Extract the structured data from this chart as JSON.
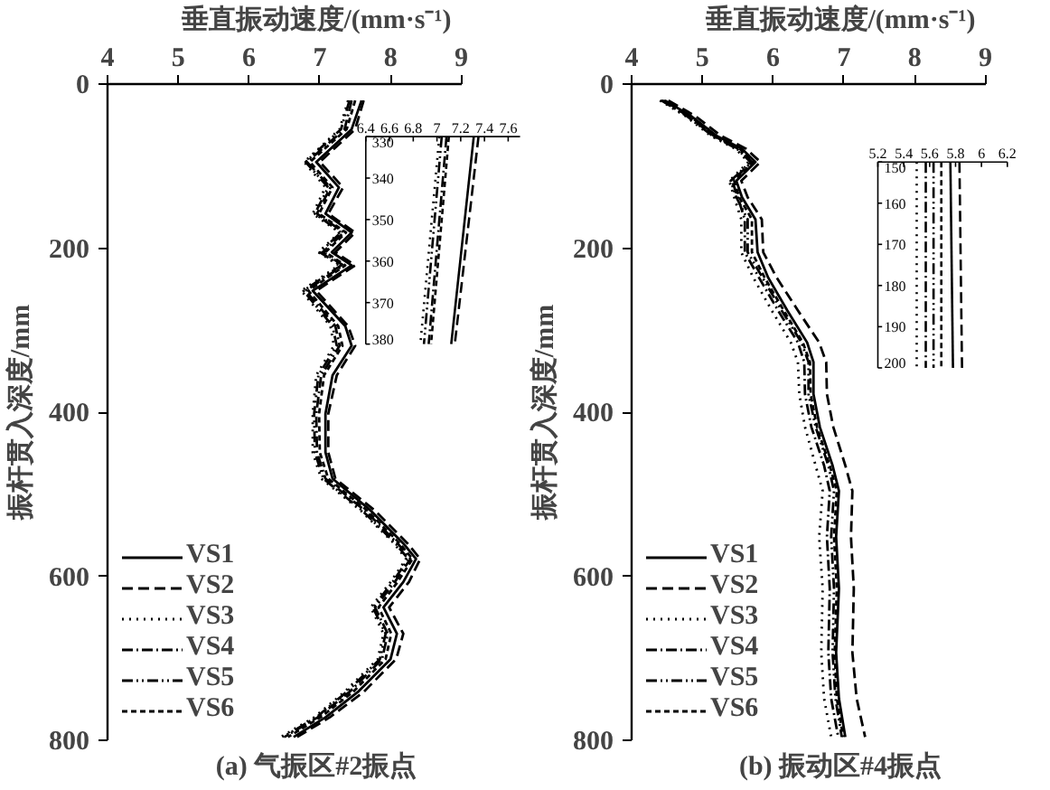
{
  "chart_data": [
    {
      "type": "line",
      "title": "(a) 气振区#2振点",
      "xlabel": "垂直振动速度/(mm·s⁻¹)",
      "ylabel": "振杆贯入深度/mm",
      "xlim": [
        4,
        9
      ],
      "xticks": [
        4,
        5,
        6,
        7,
        8,
        9
      ],
      "ylim": [
        800,
        0
      ],
      "yticks": [
        0,
        200,
        400,
        600,
        800
      ],
      "grid": false,
      "legend": "bottom left",
      "marker": "none",
      "series": [
        {
          "name": "VS1",
          "color": "#000000",
          "line_style": "solid",
          "x": [
            7.59,
            7.45,
            6.95,
            7.27,
            7.08,
            7.45,
            7.17,
            7.45,
            6.9,
            7.36,
            7.45,
            7.18,
            7.08,
            7.08,
            7.18,
            7.72,
            8.18,
            8.36,
            8.18,
            7.9,
            8.09,
            8.0,
            7.54,
            7.08,
            6.63
          ],
          "values": [
            20,
            55,
            95,
            126,
            158,
            181,
            205,
            221,
            252,
            295,
            319,
            355,
            402,
            449,
            481,
            520,
            560,
            579,
            607,
            638,
            670,
            701,
            741,
            772,
            796
          ]
        },
        {
          "name": "VS2",
          "color": "#000000",
          "line_style": "dashed",
          "x": [
            7.62,
            7.5,
            7.0,
            7.33,
            7.12,
            7.5,
            7.22,
            7.5,
            6.95,
            7.4,
            7.5,
            7.24,
            7.12,
            7.12,
            7.22,
            7.78,
            8.24,
            8.42,
            8.26,
            7.98,
            8.18,
            8.08,
            7.62,
            7.14,
            6.68
          ],
          "values": [
            20,
            55,
            95,
            126,
            158,
            181,
            205,
            221,
            252,
            295,
            319,
            355,
            402,
            449,
            481,
            520,
            560,
            579,
            607,
            638,
            670,
            701,
            741,
            772,
            796
          ]
        },
        {
          "name": "VS3",
          "color": "#000000",
          "line_style": "dotted",
          "x": [
            7.4,
            7.28,
            6.78,
            7.08,
            6.9,
            7.28,
            6.98,
            7.27,
            6.74,
            7.15,
            7.2,
            6.95,
            6.9,
            6.9,
            7.02,
            7.58,
            8.05,
            8.22,
            8.0,
            7.72,
            7.9,
            7.82,
            7.35,
            6.92,
            6.45
          ],
          "values": [
            20,
            55,
            95,
            126,
            158,
            181,
            205,
            221,
            252,
            295,
            319,
            355,
            402,
            449,
            481,
            520,
            560,
            579,
            607,
            638,
            670,
            701,
            741,
            772,
            796
          ]
        },
        {
          "name": "VS4",
          "color": "#000000",
          "line_style": "dashdot",
          "x": [
            7.45,
            7.35,
            6.82,
            7.15,
            6.96,
            7.34,
            7.04,
            7.33,
            6.8,
            7.22,
            7.28,
            7.02,
            6.95,
            6.96,
            7.08,
            7.64,
            8.1,
            8.28,
            8.06,
            7.78,
            7.96,
            7.88,
            7.42,
            6.97,
            6.5
          ],
          "values": [
            20,
            55,
            95,
            126,
            158,
            181,
            205,
            221,
            252,
            295,
            319,
            355,
            402,
            449,
            481,
            520,
            560,
            579,
            607,
            638,
            670,
            701,
            741,
            772,
            796
          ]
        },
        {
          "name": "VS5",
          "color": "#000000",
          "line_style": "dashdotdot",
          "x": [
            7.42,
            7.3,
            6.8,
            7.12,
            6.93,
            7.3,
            7.0,
            7.3,
            6.77,
            7.18,
            7.24,
            6.98,
            6.92,
            6.93,
            7.05,
            7.6,
            8.07,
            8.25,
            8.03,
            7.75,
            7.93,
            7.85,
            7.38,
            6.95,
            6.48
          ],
          "values": [
            20,
            55,
            95,
            126,
            158,
            181,
            205,
            221,
            252,
            295,
            319,
            355,
            402,
            449,
            481,
            520,
            560,
            579,
            607,
            638,
            670,
            701,
            741,
            772,
            796
          ]
        },
        {
          "name": "VS6",
          "color": "#000000",
          "line_style": "shortdash",
          "x": [
            7.5,
            7.38,
            6.86,
            7.18,
            6.99,
            7.37,
            7.08,
            7.36,
            6.84,
            7.26,
            7.32,
            7.06,
            6.99,
            7.0,
            7.12,
            7.67,
            8.13,
            8.31,
            8.1,
            7.83,
            8.01,
            7.93,
            7.47,
            7.01,
            6.55
          ],
          "values": [
            20,
            55,
            95,
            126,
            158,
            181,
            205,
            221,
            252,
            295,
            319,
            355,
            402,
            449,
            481,
            520,
            560,
            579,
            607,
            638,
            670,
            701,
            741,
            772,
            796
          ]
        }
      ]
    },
    {
      "type": "line",
      "xlim": [
        6.4,
        7.7
      ],
      "xticks": [
        6.4,
        6.6,
        6.8,
        7.0,
        7.2,
        7.4,
        7.6
      ],
      "ylim": [
        380,
        330
      ],
      "yticks": [
        330,
        340,
        350,
        360,
        370,
        380
      ],
      "marker": "none",
      "series": [
        {
          "color": "#000000",
          "line_style": "solid",
          "x": [
            7.31,
            7.12
          ],
          "values": [
            330,
            380
          ]
        },
        {
          "color": "#000000",
          "line_style": "dashed",
          "x": [
            7.35,
            7.15
          ],
          "values": [
            330,
            380
          ]
        },
        {
          "color": "#000000",
          "line_style": "dotted",
          "x": [
            7.02,
            6.86
          ],
          "values": [
            330,
            380
          ]
        },
        {
          "color": "#000000",
          "line_style": "dashdot",
          "x": [
            7.08,
            6.93
          ],
          "values": [
            330,
            380
          ]
        },
        {
          "color": "#000000",
          "line_style": "dashdotdot",
          "x": [
            7.04,
            6.89
          ],
          "values": [
            330,
            380
          ]
        },
        {
          "color": "#000000",
          "line_style": "shortdash",
          "x": [
            7.1,
            6.95
          ],
          "values": [
            330,
            380
          ]
        }
      ]
    },
    {
      "type": "line",
      "title": "(b) 振动区#4振点",
      "xlabel": "垂直振动速度/(mm·s⁻¹)",
      "ylabel": "振杆贯入深度/mm",
      "xlim": [
        4,
        9
      ],
      "xticks": [
        4,
        5,
        6,
        7,
        8,
        9
      ],
      "ylim": [
        800,
        0
      ],
      "yticks": [
        0,
        200,
        400,
        600,
        800
      ],
      "grid": false,
      "legend": "bottom left",
      "marker": "none",
      "series": [
        {
          "name": "VS1",
          "color": "#000000",
          "line_style": "solid",
          "x": [
            4.47,
            4.84,
            5.2,
            5.56,
            5.75,
            5.48,
            5.56,
            5.75,
            5.78,
            5.93,
            6.2,
            6.48,
            6.57,
            6.57,
            6.66,
            6.84,
            6.93,
            6.89,
            6.93,
            6.89,
            6.93,
            7.02
          ],
          "values": [
            20,
            39,
            63,
            79,
            95,
            118,
            138,
            165,
            205,
            236,
            276,
            315,
            339,
            378,
            418,
            465,
            496,
            552,
            615,
            693,
            749,
            796
          ]
        },
        {
          "name": "VS2",
          "color": "#000000",
          "line_style": "dashed",
          "x": [
            4.52,
            4.9,
            5.26,
            5.62,
            5.82,
            5.55,
            5.64,
            5.84,
            5.86,
            6.05,
            6.35,
            6.65,
            6.75,
            6.76,
            6.85,
            7.02,
            7.12,
            7.1,
            7.14,
            7.12,
            7.18,
            7.3
          ],
          "values": [
            20,
            39,
            63,
            79,
            95,
            118,
            138,
            165,
            205,
            236,
            276,
            315,
            339,
            378,
            418,
            465,
            496,
            552,
            615,
            693,
            749,
            796
          ]
        },
        {
          "name": "VS3",
          "color": "#000000",
          "line_style": "dotted",
          "x": [
            4.4,
            4.76,
            5.12,
            5.47,
            5.65,
            5.38,
            5.45,
            5.55,
            5.55,
            5.72,
            5.98,
            6.25,
            6.35,
            6.37,
            6.45,
            6.6,
            6.7,
            6.65,
            6.7,
            6.68,
            6.72,
            6.82
          ],
          "values": [
            20,
            39,
            63,
            79,
            95,
            118,
            138,
            165,
            205,
            236,
            276,
            315,
            339,
            378,
            418,
            465,
            496,
            552,
            615,
            693,
            749,
            796
          ]
        },
        {
          "name": "VS4",
          "color": "#000000",
          "line_style": "dashdot",
          "x": [
            4.43,
            4.8,
            5.16,
            5.51,
            5.7,
            5.42,
            5.5,
            5.6,
            5.6,
            5.8,
            6.07,
            6.35,
            6.44,
            6.45,
            6.54,
            6.72,
            6.8,
            6.76,
            6.8,
            6.78,
            6.82,
            6.92
          ],
          "values": [
            20,
            39,
            63,
            79,
            95,
            118,
            138,
            165,
            205,
            236,
            276,
            315,
            339,
            378,
            418,
            465,
            496,
            552,
            615,
            693,
            749,
            796
          ]
        },
        {
          "name": "VS5",
          "color": "#000000",
          "line_style": "dashdotdot",
          "x": [
            4.42,
            4.78,
            5.14,
            5.49,
            5.68,
            5.4,
            5.48,
            5.64,
            5.64,
            5.85,
            6.12,
            6.4,
            6.5,
            6.5,
            6.6,
            6.78,
            6.86,
            6.82,
            6.86,
            6.84,
            6.88,
            6.97
          ],
          "values": [
            20,
            39,
            63,
            79,
            95,
            118,
            138,
            165,
            205,
            236,
            276,
            315,
            339,
            378,
            418,
            465,
            496,
            552,
            615,
            693,
            749,
            796
          ]
        },
        {
          "name": "VS6",
          "color": "#000000",
          "line_style": "shortdash",
          "x": [
            4.45,
            4.82,
            5.18,
            5.53,
            5.72,
            5.45,
            5.52,
            5.7,
            5.7,
            5.88,
            6.15,
            6.42,
            6.52,
            6.53,
            6.62,
            6.8,
            6.9,
            6.86,
            6.9,
            6.87,
            6.9,
            6.99
          ],
          "values": [
            20,
            39,
            63,
            79,
            95,
            118,
            138,
            165,
            205,
            236,
            276,
            315,
            339,
            378,
            418,
            465,
            496,
            552,
            615,
            693,
            749,
            796
          ]
        }
      ]
    },
    {
      "type": "line",
      "xlim": [
        5.2,
        6.2
      ],
      "xticks": [
        5.2,
        5.4,
        5.6,
        5.8,
        6.0,
        6.2
      ],
      "ylim": [
        200,
        150
      ],
      "yticks": [
        150,
        160,
        170,
        180,
        190,
        200
      ],
      "marker": "none",
      "series": [
        {
          "color": "#000000",
          "line_style": "solid",
          "x": [
            5.76,
            5.78
          ],
          "values": [
            150,
            200
          ]
        },
        {
          "color": "#000000",
          "line_style": "dashed",
          "x": [
            5.83,
            5.85
          ],
          "values": [
            150,
            200
          ]
        },
        {
          "color": "#000000",
          "line_style": "dotted",
          "x": [
            5.5,
            5.5
          ],
          "values": [
            150,
            200
          ]
        },
        {
          "color": "#000000",
          "line_style": "dashdot",
          "x": [
            5.57,
            5.57
          ],
          "values": [
            150,
            200
          ]
        },
        {
          "color": "#000000",
          "line_style": "dashdotdot",
          "x": [
            5.63,
            5.63
          ],
          "values": [
            150,
            200
          ]
        },
        {
          "color": "#000000",
          "line_style": "shortdash",
          "x": [
            5.69,
            5.69
          ],
          "values": [
            150,
            200
          ]
        }
      ]
    }
  ]
}
